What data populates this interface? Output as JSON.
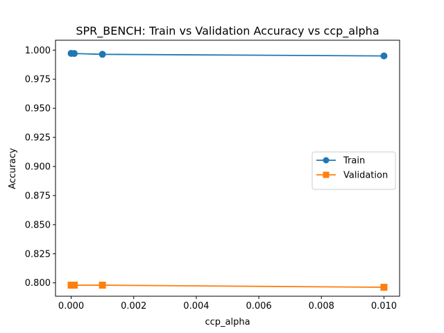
{
  "chart_data": {
    "type": "line",
    "title": "SPR_BENCH: Train vs Validation Accuracy vs ccp_alpha",
    "xlabel": "ccp_alpha",
    "ylabel": "Accuracy",
    "xlim": [
      -0.0005,
      0.0105
    ],
    "ylim": [
      0.7885,
      1.0085
    ],
    "xticks": [
      0.0,
      0.002,
      0.004,
      0.006,
      0.008,
      0.01
    ],
    "xtick_labels": [
      "0.000",
      "0.002",
      "0.004",
      "0.006",
      "0.008",
      "0.010"
    ],
    "yticks": [
      0.8,
      0.825,
      0.85,
      0.875,
      0.9,
      0.925,
      0.95,
      0.975,
      1.0
    ],
    "ytick_labels": [
      "0.800",
      "0.825",
      "0.850",
      "0.875",
      "0.900",
      "0.925",
      "0.950",
      "0.975",
      "1.000"
    ],
    "grid": false,
    "legend_position": "center-right",
    "series": [
      {
        "name": "Train",
        "color": "#1f77b4",
        "marker": "circle",
        "x": [
          0.0,
          0.0001,
          0.001,
          0.01
        ],
        "y": [
          0.9972,
          0.9971,
          0.9964,
          0.995
        ]
      },
      {
        "name": "Validation",
        "color": "#ff7f0e",
        "marker": "square",
        "x": [
          0.0,
          0.0001,
          0.001,
          0.01
        ],
        "y": [
          0.798,
          0.798,
          0.798,
          0.7962
        ]
      }
    ]
  }
}
